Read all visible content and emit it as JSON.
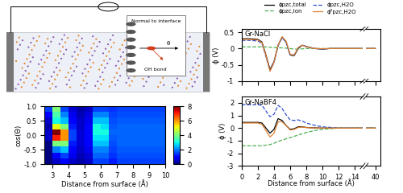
{
  "schematic": {
    "inset_labels": [
      "Normal to interface",
      "OH bond",
      "θ"
    ]
  },
  "chart_data": [
    {
      "type": "heatmap",
      "xlabel": "Distance from surface (Å)",
      "ylabel": "cos(Θ)",
      "xlim": [
        2.5,
        10
      ],
      "xticks": [
        3,
        4,
        5,
        6,
        7,
        8,
        9,
        10
      ],
      "ylim": [
        -1,
        1
      ],
      "yticks": [
        {
          "value": -1,
          "label": "-1.0"
        },
        {
          "value": -0.5,
          "label": "-0.5"
        },
        {
          "value": 0,
          "label": "0.0"
        },
        {
          "value": 0.5,
          "label": "0.5"
        },
        {
          "value": 1,
          "label": "1.0"
        }
      ],
      "x_edges": [
        2.5,
        3,
        3.5,
        4,
        4.5,
        5,
        5.5,
        6,
        6.5,
        7,
        7.5,
        8,
        8.5,
        9,
        9.5,
        10
      ],
      "y_edges": [
        -1,
        -0.8,
        -0.6,
        -0.4,
        -0.2,
        0,
        0.2,
        0.4,
        0.6,
        0.8,
        1
      ],
      "cells": [
        [
          0,
          0.5,
          1,
          0.5,
          0.3,
          0.5,
          1.5,
          1.5,
          1.2,
          1.5,
          1.5,
          1.5,
          1.5,
          1.5,
          1.5
        ],
        [
          0,
          1,
          1.5,
          0.8,
          0.4,
          0.6,
          1.8,
          1.8,
          1.4,
          1.6,
          1.6,
          1.6,
          1.6,
          1.6,
          1.6
        ],
        [
          0,
          2,
          2.5,
          1,
          0.5,
          0.8,
          2,
          2,
          1.5,
          1.7,
          1.7,
          1.7,
          1.7,
          1.7,
          1.7
        ],
        [
          0,
          4,
          4,
          1.2,
          0.6,
          1,
          2.5,
          2.5,
          1.6,
          1.8,
          1.8,
          1.8,
          1.8,
          1.8,
          1.8
        ],
        [
          0.5,
          7,
          6,
          1.5,
          0.6,
          1,
          2.8,
          2.8,
          1.7,
          1.8,
          1.8,
          1.8,
          1.8,
          1.8,
          1.8
        ],
        [
          0.5,
          8,
          6,
          1.5,
          0.6,
          1,
          3,
          3,
          1.8,
          1.8,
          1.8,
          1.8,
          1.8,
          1.8,
          1.8
        ],
        [
          0.3,
          5,
          4,
          1.2,
          0.5,
          1,
          3,
          2.8,
          1.7,
          1.8,
          1.8,
          1.8,
          1.8,
          1.8,
          1.8
        ],
        [
          0.5,
          3,
          2.5,
          1,
          0.5,
          0.8,
          2.5,
          2.5,
          1.6,
          1.7,
          1.7,
          1.7,
          1.7,
          1.7,
          1.7
        ],
        [
          1,
          3.5,
          2,
          0.8,
          0.4,
          0.7,
          2,
          2,
          1.5,
          1.6,
          1.6,
          1.6,
          1.6,
          1.6,
          1.6
        ],
        [
          1.5,
          4,
          1.5,
          0.6,
          0.3,
          0.5,
          1.5,
          1.5,
          1.4,
          1.5,
          1.5,
          1.5,
          1.5,
          1.5,
          1.5
        ]
      ],
      "colorbar": {
        "range": [
          0,
          8
        ],
        "ticks": [
          0,
          2,
          4,
          6,
          8
        ]
      }
    },
    {
      "type": "line",
      "title": "Gr-NaCl",
      "ylabel": "ϕ (V)",
      "legend": "upper center",
      "tick_labels": "y",
      "xlim": [
        0,
        41
      ],
      "axis_break": [
        15,
        38
      ],
      "xticks": [
        0,
        2,
        4,
        6,
        8,
        10,
        12,
        14,
        40
      ],
      "ylim": [
        -1,
        0.6
      ],
      "yticks": [
        -1,
        -0.5,
        0,
        0.5
      ],
      "x": [
        0,
        1,
        2,
        2.5,
        3,
        3.5,
        4,
        4.5,
        5,
        5.5,
        6,
        6.5,
        7,
        7.5,
        8,
        9,
        10,
        11,
        12,
        13,
        14,
        15,
        40
      ],
      "series": [
        {
          "name": "ϕpzc,total",
          "color": "#000000",
          "line_style": "solid",
          "values": [
            0.3,
            0.3,
            0.28,
            0.2,
            -0.2,
            -0.65,
            -0.4,
            0.1,
            0.35,
            0.2,
            -0.2,
            -0.22,
            0.0,
            0.1,
            0.06,
            0.0,
            -0.02,
            0,
            0,
            0,
            0,
            0,
            0
          ]
        },
        {
          "name": "ϕpzc,ion",
          "color": "#4caf50",
          "line_style": "dashed",
          "values": [
            0.05,
            0.05,
            0.05,
            0.05,
            0.05,
            0.04,
            0.03,
            0.02,
            0.02,
            0.01,
            0.0,
            -0.02,
            -0.02,
            -0.01,
            0,
            0,
            0,
            0,
            0,
            0,
            0,
            0,
            0
          ]
        },
        {
          "name": "ϕpzc,H2O",
          "color": "#3050d0",
          "line_style": "dashed",
          "values": [
            0.25,
            0.25,
            0.23,
            0.15,
            -0.25,
            -0.69,
            -0.43,
            0.08,
            0.33,
            0.19,
            -0.2,
            -0.2,
            0.02,
            0.11,
            0.06,
            0,
            -0.02,
            0,
            0,
            0,
            0,
            0,
            0
          ]
        },
        {
          "name": "ϕ⁰pzc,H2O",
          "color": "#e08030",
          "line_style": "solid",
          "values": [
            0.28,
            0.28,
            0.26,
            0.18,
            -0.22,
            -0.7,
            -0.42,
            0.1,
            0.36,
            0.22,
            -0.18,
            -0.2,
            0.03,
            0.1,
            0.05,
            0,
            -0.01,
            0,
            0,
            0,
            0,
            0,
            0
          ]
        }
      ]
    },
    {
      "type": "line",
      "title": "Gr-NaBF4",
      "ylabel": "ϕ (V)",
      "xlabel": "Distance from surface (Å)",
      "xlim": [
        0,
        41
      ],
      "axis_break": [
        15,
        38
      ],
      "xticks": [
        0,
        2,
        4,
        6,
        8,
        10,
        12,
        14,
        40
      ],
      "ylim": [
        -3,
        2.5
      ],
      "yticks": [
        -3,
        -2,
        -1,
        0,
        1,
        2
      ],
      "x": [
        0,
        1,
        2,
        2.5,
        3,
        3.5,
        4,
        4.5,
        5,
        5.5,
        6,
        6.5,
        7,
        7.5,
        8,
        9,
        10,
        11,
        12,
        13,
        14,
        15,
        40
      ],
      "series": [
        {
          "name": "ϕpzc,total",
          "color": "#000000",
          "line_style": "solid",
          "values": [
            0.45,
            0.45,
            0.45,
            0.4,
            0.0,
            -0.4,
            -0.1,
            0.75,
            0.6,
            0.2,
            -0.1,
            -0.05,
            0.1,
            0.1,
            0.05,
            0.02,
            0,
            0,
            0,
            0,
            0,
            0,
            0
          ]
        },
        {
          "name": "ϕpzc,ion",
          "color": "#4caf50",
          "line_style": "dashed",
          "values": [
            -1.4,
            -1.4,
            -1.4,
            -1.4,
            -1.35,
            -1.3,
            -1.2,
            -1.05,
            -0.95,
            -0.85,
            -0.75,
            -0.65,
            -0.55,
            -0.45,
            -0.35,
            -0.2,
            -0.1,
            -0.05,
            0,
            0,
            0,
            0,
            0
          ]
        },
        {
          "name": "ϕpzc,H2O",
          "color": "#3050d0",
          "line_style": "dashed",
          "values": [
            1.85,
            1.85,
            1.85,
            1.8,
            1.35,
            0.9,
            1.1,
            1.8,
            1.55,
            1.05,
            0.65,
            0.6,
            0.65,
            0.55,
            0.4,
            0.22,
            0.1,
            0.05,
            0,
            0,
            0,
            0,
            0
          ]
        },
        {
          "name": "ϕ⁰pzc,H2O",
          "color": "#e08030",
          "line_style": "solid",
          "values": [
            0.4,
            0.4,
            0.4,
            0.3,
            -0.2,
            -0.7,
            -0.4,
            0.5,
            0.5,
            0.2,
            -0.15,
            -0.1,
            0.05,
            0.08,
            0.04,
            0.01,
            0,
            0,
            0,
            0,
            0,
            0,
            0
          ]
        }
      ]
    }
  ]
}
